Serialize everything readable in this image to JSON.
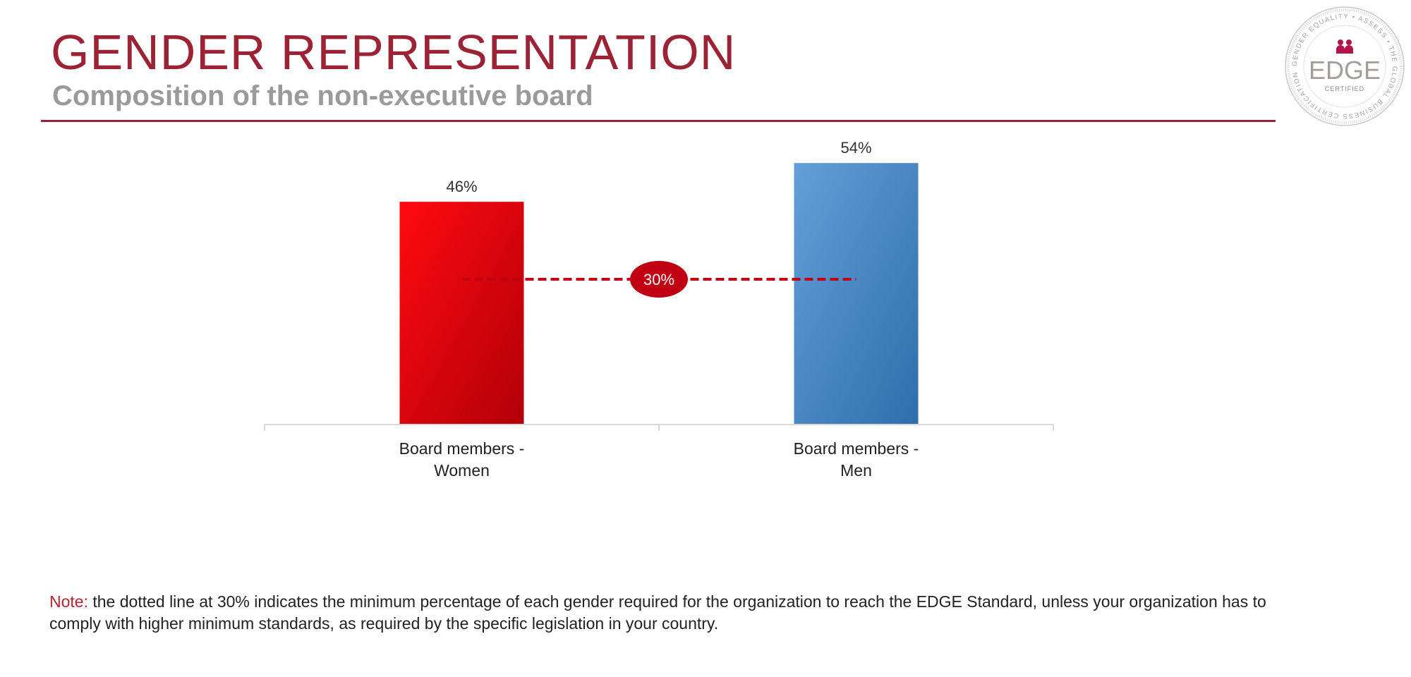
{
  "header": {
    "title": "GENDER REPRESENTATION",
    "subtitle": "Composition of the non-executive board"
  },
  "seal": {
    "ring_text": "GENDER EQUALITY • ASSESS • THE GLOBAL BUSINESS CERTIFICATION FOR",
    "wordmark": "EDGE",
    "certified": "CERTIFIED",
    "icon": "people-icon"
  },
  "chart_data": {
    "type": "bar",
    "categories": [
      "Board members - Women",
      "Board members - Men"
    ],
    "category_lines": [
      [
        "Board members -",
        "Women"
      ],
      [
        "Board members -",
        "Men"
      ]
    ],
    "values": [
      46,
      54
    ],
    "value_labels": [
      "46%",
      "54%"
    ],
    "ylim": [
      0,
      60
    ],
    "grid": false,
    "colors": [
      "#e8000e",
      "#4a8bc9"
    ],
    "threshold": {
      "value": 30,
      "label": "30%",
      "color": "#c00012"
    }
  },
  "note": {
    "label": "Note:",
    "text": " the dotted line at 30% indicates the minimum percentage of each gender required for the organization to reach the EDGE Standard, unless your organization has to comply with higher minimum standards, as required by the specific legislation in your country."
  }
}
